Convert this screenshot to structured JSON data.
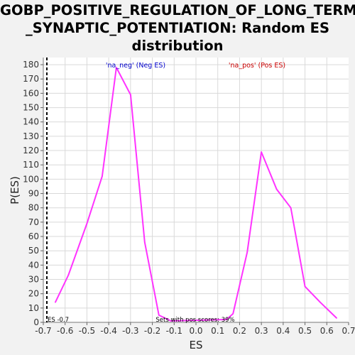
{
  "chart_data": {
    "type": "line",
    "title": "GOBP_POSITIVE_REGULATION_OF_LONG_TERM\n_SYNAPTIC_POTENTIATION: Random ES\ndistribution",
    "xlabel": "ES",
    "ylabel": "P(ES)",
    "xlim": [
      -0.7,
      0.7
    ],
    "ylim": [
      0,
      185
    ],
    "x_ticks": [
      "-0.7",
      "-0.6",
      "-0.5",
      "-0.4",
      "-0.3",
      "-0.2",
      "-0.1",
      "0.0",
      "0.1",
      "0.2",
      "0.3",
      "0.4",
      "0.5",
      "0.6",
      "0.7"
    ],
    "y_ticks": [
      "0",
      "10",
      "20",
      "30",
      "40",
      "50",
      "60",
      "70",
      "80",
      "90",
      "100",
      "110",
      "120",
      "130",
      "140",
      "150",
      "160",
      "170",
      "180"
    ],
    "grid": true,
    "series": [
      {
        "color": "#ff33ff",
        "x": [
          -0.645,
          -0.585,
          -0.5,
          -0.43,
          -0.365,
          -0.3,
          -0.235,
          -0.17,
          -0.115,
          0.14,
          0.17,
          0.235,
          0.3,
          0.37,
          0.435,
          0.5,
          0.57,
          0.645
        ],
        "y": [
          14,
          33,
          69,
          102,
          178,
          159,
          56,
          5,
          1,
          2,
          6,
          49,
          119,
          93,
          80,
          25,
          14,
          3
        ]
      }
    ],
    "legend": [
      {
        "text": "'na_neg' (Neg ES)",
        "color": "#0000cc"
      },
      {
        "text": "'na_pos' (Pos ES)",
        "color": "#cc0000"
      }
    ],
    "es_marker": {
      "x": -0.7,
      "label": "ES -0.7"
    },
    "annotation": "Sets with pos scores: 39%"
  }
}
